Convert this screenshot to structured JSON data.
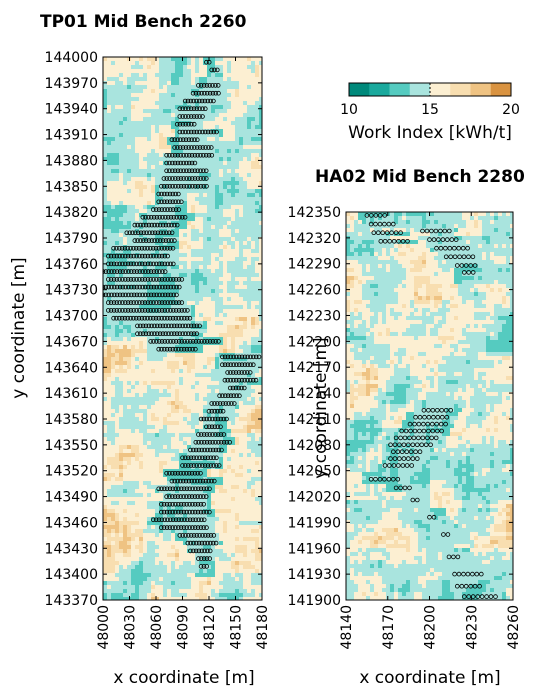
{
  "chart_data": [
    {
      "type": "heatmap",
      "title": "TP01 Mid Bench 2260",
      "xlabel": "x coordinate [m]",
      "ylabel": "y coordinate [m]",
      "xlim": [
        48000,
        48180
      ],
      "ylim": [
        143370,
        144000
      ],
      "xticks": [
        "48000",
        "48030",
        "48060",
        "48090",
        "48120",
        "48150",
        "48180"
      ],
      "yticks": [
        "144000",
        "143970",
        "143940",
        "143910",
        "143880",
        "143850",
        "143820",
        "143790",
        "143760",
        "143730",
        "143700",
        "143670",
        "143640",
        "143610",
        "143580",
        "143550",
        "143520",
        "143490",
        "143460",
        "143430",
        "143400",
        "143370"
      ],
      "samples": [
        {
          "y": 143994,
          "x0": 48117,
          "x1": 48123
        },
        {
          "y": 143985,
          "x0": 48123,
          "x1": 48132
        },
        {
          "y": 143967,
          "x0": 48108,
          "x1": 48132
        },
        {
          "y": 143958,
          "x0": 48102,
          "x1": 48132
        },
        {
          "y": 143949,
          "x0": 48093,
          "x1": 48126
        },
        {
          "y": 143940,
          "x0": 48087,
          "x1": 48117
        },
        {
          "y": 143931,
          "x0": 48087,
          "x1": 48114
        },
        {
          "y": 143922,
          "x0": 48084,
          "x1": 48105
        },
        {
          "y": 143913,
          "x0": 48087,
          "x1": 48129
        },
        {
          "y": 143904,
          "x0": 48078,
          "x1": 48108
        },
        {
          "y": 143895,
          "x0": 48081,
          "x1": 48123
        },
        {
          "y": 143886,
          "x0": 48072,
          "x1": 48126
        },
        {
          "y": 143877,
          "x0": 48072,
          "x1": 48105
        },
        {
          "y": 143868,
          "x0": 48072,
          "x1": 48117
        },
        {
          "y": 143859,
          "x0": 48069,
          "x1": 48120
        },
        {
          "y": 143850,
          "x0": 48066,
          "x1": 48120
        },
        {
          "y": 143841,
          "x0": 48063,
          "x1": 48087
        },
        {
          "y": 143832,
          "x0": 48063,
          "x1": 48090
        },
        {
          "y": 143823,
          "x0": 48057,
          "x1": 48087
        },
        {
          "y": 143814,
          "x0": 48045,
          "x1": 48096
        },
        {
          "y": 143805,
          "x0": 48036,
          "x1": 48087
        },
        {
          "y": 143796,
          "x0": 48027,
          "x1": 48081
        },
        {
          "y": 143787,
          "x0": 48036,
          "x1": 48081
        },
        {
          "y": 143778,
          "x0": 48012,
          "x1": 48081
        },
        {
          "y": 143769,
          "x0": 48006,
          "x1": 48075
        },
        {
          "y": 143760,
          "x0": 48006,
          "x1": 48081
        },
        {
          "y": 143751,
          "x0": 48000,
          "x1": 48072
        },
        {
          "y": 143742,
          "x0": 48006,
          "x1": 48090
        },
        {
          "y": 143733,
          "x0": 48000,
          "x1": 48087
        },
        {
          "y": 143724,
          "x0": 48000,
          "x1": 48084
        },
        {
          "y": 143715,
          "x0": 48006,
          "x1": 48090
        },
        {
          "y": 143706,
          "x0": 48006,
          "x1": 48096
        },
        {
          "y": 143697,
          "x0": 48012,
          "x1": 48099
        },
        {
          "y": 143688,
          "x0": 48039,
          "x1": 48111
        },
        {
          "y": 143679,
          "x0": 48039,
          "x1": 48108
        },
        {
          "y": 143670,
          "x0": 48054,
          "x1": 48132
        },
        {
          "y": 143661,
          "x0": 48063,
          "x1": 48105
        },
        {
          "y": 143652,
          "x0": 48135,
          "x1": 48177
        },
        {
          "y": 143643,
          "x0": 48135,
          "x1": 48171
        },
        {
          "y": 143634,
          "x0": 48141,
          "x1": 48168
        },
        {
          "y": 143625,
          "x0": 48138,
          "x1": 48174
        },
        {
          "y": 143616,
          "x0": 48144,
          "x1": 48162
        },
        {
          "y": 143607,
          "x0": 48132,
          "x1": 48156
        },
        {
          "y": 143598,
          "x0": 48123,
          "x1": 48150
        },
        {
          "y": 143589,
          "x0": 48120,
          "x1": 48138
        },
        {
          "y": 143580,
          "x0": 48111,
          "x1": 48141
        },
        {
          "y": 143571,
          "x0": 48117,
          "x1": 48135
        },
        {
          "y": 143562,
          "x0": 48108,
          "x1": 48138
        },
        {
          "y": 143553,
          "x0": 48105,
          "x1": 48144
        },
        {
          "y": 143544,
          "x0": 48099,
          "x1": 48135
        },
        {
          "y": 143535,
          "x0": 48090,
          "x1": 48129
        },
        {
          "y": 143526,
          "x0": 48090,
          "x1": 48132
        },
        {
          "y": 143517,
          "x0": 48072,
          "x1": 48111
        },
        {
          "y": 143508,
          "x0": 48078,
          "x1": 48129
        },
        {
          "y": 143499,
          "x0": 48063,
          "x1": 48123
        },
        {
          "y": 143490,
          "x0": 48072,
          "x1": 48117
        },
        {
          "y": 143481,
          "x0": 48066,
          "x1": 48117
        },
        {
          "y": 143472,
          "x0": 48066,
          "x1": 48123
        },
        {
          "y": 143463,
          "x0": 48057,
          "x1": 48117
        },
        {
          "y": 143454,
          "x0": 48066,
          "x1": 48120
        },
        {
          "y": 143445,
          "x0": 48087,
          "x1": 48126
        },
        {
          "y": 143436,
          "x0": 48096,
          "x1": 48129
        },
        {
          "y": 143427,
          "x0": 48099,
          "x1": 48123
        },
        {
          "y": 143418,
          "x0": 48108,
          "x1": 48123
        },
        {
          "y": 143409,
          "x0": 48111,
          "x1": 48120
        }
      ]
    },
    {
      "type": "heatmap",
      "title": "HA02 Mid Bench 2280",
      "xlabel": "x coordinate [m]",
      "ylabel": "y coordinate [m]",
      "xlim": [
        48140,
        48260
      ],
      "ylim": [
        141900,
        142350
      ],
      "xticks": [
        "48140",
        "48170",
        "48200",
        "48230",
        "48260"
      ],
      "yticks": [
        "142350",
        "142320",
        "142290",
        "142260",
        "142230",
        "142200",
        "142170",
        "142140",
        "142110",
        "142080",
        "142050",
        "142020",
        "141990",
        "141960",
        "141930",
        "141900"
      ],
      "samples": [
        {
          "y": 142346,
          "x0": 48155,
          "x1": 48170
        },
        {
          "y": 142336,
          "x0": 48158,
          "x1": 48176
        },
        {
          "y": 142326,
          "x0": 48160,
          "x1": 48180
        },
        {
          "y": 142316,
          "x0": 48165,
          "x1": 48185
        },
        {
          "y": 142328,
          "x0": 48195,
          "x1": 48215
        },
        {
          "y": 142318,
          "x0": 48200,
          "x1": 48222
        },
        {
          "y": 142308,
          "x0": 48205,
          "x1": 48228
        },
        {
          "y": 142298,
          "x0": 48212,
          "x1": 48233
        },
        {
          "y": 142288,
          "x0": 48220,
          "x1": 48235
        },
        {
          "y": 142280,
          "x0": 48225,
          "x1": 48232
        },
        {
          "y": 142120,
          "x0": 48196,
          "x1": 48218
        },
        {
          "y": 142112,
          "x0": 48190,
          "x1": 48215
        },
        {
          "y": 142104,
          "x0": 48186,
          "x1": 48212
        },
        {
          "y": 142096,
          "x0": 48180,
          "x1": 48210
        },
        {
          "y": 142088,
          "x0": 48176,
          "x1": 48206
        },
        {
          "y": 142080,
          "x0": 48172,
          "x1": 48202
        },
        {
          "y": 142072,
          "x0": 48174,
          "x1": 48196
        },
        {
          "y": 142064,
          "x0": 48172,
          "x1": 48192
        },
        {
          "y": 142056,
          "x0": 48168,
          "x1": 48188
        },
        {
          "y": 142040,
          "x0": 48158,
          "x1": 48180
        },
        {
          "y": 142030,
          "x0": 48176,
          "x1": 48186
        },
        {
          "y": 142016,
          "x0": 48188,
          "x1": 48194
        },
        {
          "y": 141996,
          "x0": 48200,
          "x1": 48206
        },
        {
          "y": 141976,
          "x0": 48210,
          "x1": 48216
        },
        {
          "y": 141950,
          "x0": 48214,
          "x1": 48222
        },
        {
          "y": 141930,
          "x0": 48218,
          "x1": 48240
        },
        {
          "y": 141916,
          "x0": 48220,
          "x1": 48238
        },
        {
          "y": 141904,
          "x0": 48225,
          "x1": 48250
        }
      ]
    }
  ],
  "colorbar": {
    "label": "Work Index [kWh/t]",
    "min": 10,
    "max": 20,
    "ticks": [
      "10",
      "15",
      "20"
    ],
    "colors": [
      "#00897b",
      "#1aa99d",
      "#55cbc0",
      "#a9e4de",
      "#fcefd2",
      "#f8deb0",
      "#efc383",
      "#d99341"
    ]
  }
}
